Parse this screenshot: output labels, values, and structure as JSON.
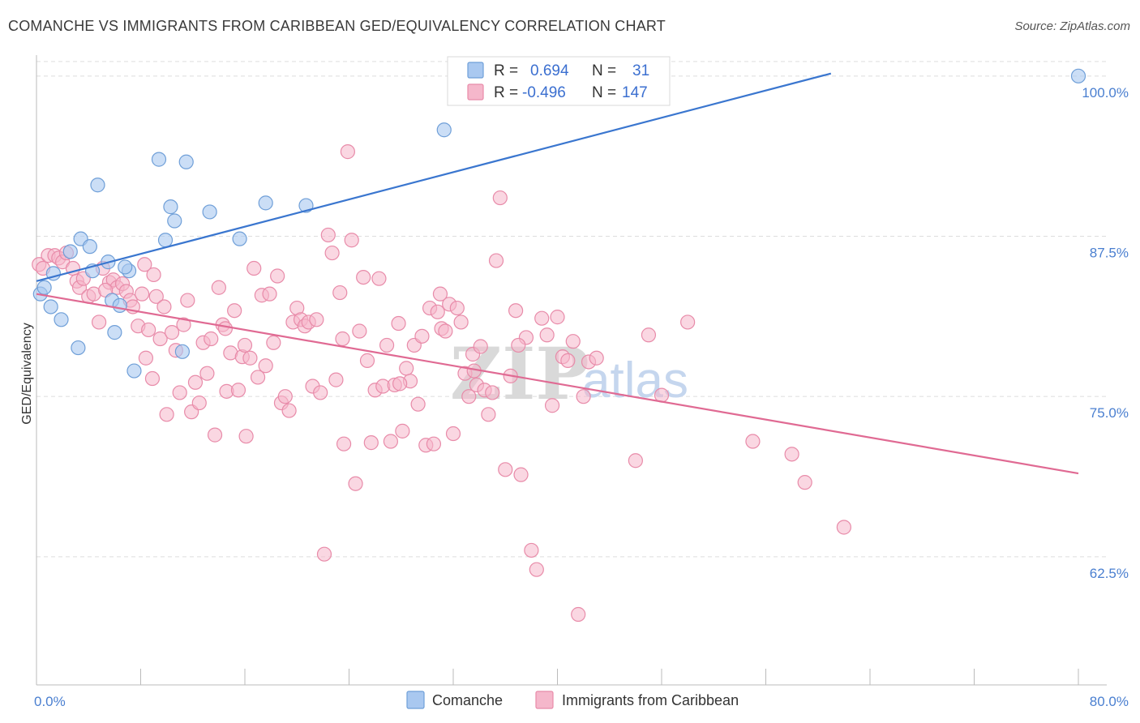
{
  "title": "COMANCHE VS IMMIGRANTS FROM CARIBBEAN GED/EQUIVALENCY CORRELATION CHART",
  "source": "Source: ZipAtlas.com",
  "watermark": {
    "zip": "ZIP",
    "atlas": "atlas"
  },
  "colors": {
    "blue_fill": "#a9c8f0",
    "blue_stroke": "#6f9fd8",
    "blue_line": "#3a76cf",
    "pink_fill": "#f5b7cb",
    "pink_stroke": "#e88ba9",
    "pink_line": "#e06a93",
    "grid": "#dddddd",
    "tick_text": "#4a7fd0"
  },
  "legend": {
    "rows": [
      {
        "r_label": "R =",
        "r_value": "0.694",
        "n_label": "N =",
        "n_value": "31"
      },
      {
        "r_label": "R =",
        "r_value": "-0.496",
        "n_label": "N =",
        "n_value": "147"
      }
    ]
  },
  "chart_data": {
    "type": "scatter",
    "title": "COMANCHE VS IMMIGRANTS FROM CARIBBEAN GED/EQUIVALENCY CORRELATION CHART",
    "xlabel": "",
    "ylabel": "GED/Equivalency",
    "xlim": [
      0,
      80
    ],
    "ylim": [
      52.5,
      101
    ],
    "x_tick_labels": [
      "0.0%",
      "80.0%"
    ],
    "y_ticks": [
      62.5,
      75.0,
      87.5,
      100.0
    ],
    "y_tick_labels": [
      "62.5%",
      "75.0%",
      "87.5%",
      "100.0%"
    ],
    "grid": true,
    "legend_position": "bottom",
    "series": [
      {
        "name": "Comanche",
        "color": "#a9c8f0",
        "trend": {
          "x": [
            0,
            61
          ],
          "y": [
            84.0,
            100.2
          ]
        },
        "points": [
          [
            0.3,
            83.0
          ],
          [
            0.6,
            83.5
          ],
          [
            1.1,
            82.0
          ],
          [
            1.9,
            81.0
          ],
          [
            2.6,
            86.3
          ],
          [
            3.2,
            78.8
          ],
          [
            3.4,
            87.3
          ],
          [
            4.1,
            86.7
          ],
          [
            4.7,
            91.5
          ],
          [
            5.5,
            85.5
          ],
          [
            5.8,
            82.5
          ],
          [
            6.0,
            80.0
          ],
          [
            6.4,
            82.1
          ],
          [
            7.1,
            84.8
          ],
          [
            7.5,
            77.0
          ],
          [
            9.4,
            93.5
          ],
          [
            9.9,
            87.2
          ],
          [
            10.3,
            89.8
          ],
          [
            10.6,
            88.7
          ],
          [
            11.2,
            78.5
          ],
          [
            11.5,
            93.3
          ],
          [
            13.3,
            89.4
          ],
          [
            15.6,
            87.3
          ],
          [
            17.6,
            90.1
          ],
          [
            20.7,
            89.9
          ],
          [
            31.3,
            95.8
          ],
          [
            33.0,
            100.0
          ],
          [
            80.0,
            100.0
          ],
          [
            4.3,
            84.8
          ],
          [
            1.3,
            84.6
          ],
          [
            6.8,
            85.1
          ]
        ]
      },
      {
        "name": "Immigrants from Caribbean",
        "color": "#f5b7cb",
        "trend": {
          "x": [
            0,
            80
          ],
          "y": [
            83.0,
            69.0
          ]
        },
        "points": [
          [
            0.2,
            85.3
          ],
          [
            0.5,
            85.0
          ],
          [
            0.9,
            86.0
          ],
          [
            1.4,
            86.0
          ],
          [
            1.7,
            85.8
          ],
          [
            2.0,
            85.5
          ],
          [
            2.3,
            86.2
          ],
          [
            2.8,
            85.0
          ],
          [
            3.1,
            84.0
          ],
          [
            3.3,
            83.5
          ],
          [
            3.6,
            84.2
          ],
          [
            4.0,
            82.8
          ],
          [
            4.4,
            83.0
          ],
          [
            4.8,
            80.8
          ],
          [
            5.1,
            85.0
          ],
          [
            5.6,
            83.9
          ],
          [
            5.9,
            84.1
          ],
          [
            6.2,
            83.5
          ],
          [
            6.6,
            83.8
          ],
          [
            6.9,
            83.2
          ],
          [
            7.2,
            82.5
          ],
          [
            7.4,
            82.0
          ],
          [
            7.8,
            80.5
          ],
          [
            8.1,
            83.0
          ],
          [
            8.3,
            85.3
          ],
          [
            8.6,
            80.2
          ],
          [
            8.9,
            76.4
          ],
          [
            9.2,
            82.8
          ],
          [
            9.5,
            79.5
          ],
          [
            9.8,
            82.0
          ],
          [
            10.0,
            73.6
          ],
          [
            10.4,
            80.0
          ],
          [
            10.7,
            78.6
          ],
          [
            11.0,
            75.3
          ],
          [
            11.3,
            80.6
          ],
          [
            11.6,
            82.5
          ],
          [
            11.9,
            73.8
          ],
          [
            12.2,
            76.1
          ],
          [
            12.5,
            74.5
          ],
          [
            12.8,
            79.2
          ],
          [
            13.1,
            76.8
          ],
          [
            13.4,
            79.5
          ],
          [
            13.7,
            72.0
          ],
          [
            14.0,
            83.5
          ],
          [
            14.3,
            80.6
          ],
          [
            14.6,
            75.4
          ],
          [
            14.9,
            78.4
          ],
          [
            15.2,
            81.7
          ],
          [
            15.5,
            75.5
          ],
          [
            15.8,
            78.1
          ],
          [
            16.1,
            71.9
          ],
          [
            16.4,
            78.0
          ],
          [
            16.7,
            85.0
          ],
          [
            17.0,
            76.5
          ],
          [
            17.3,
            82.9
          ],
          [
            17.6,
            77.4
          ],
          [
            17.9,
            83.0
          ],
          [
            18.2,
            79.2
          ],
          [
            18.5,
            84.4
          ],
          [
            18.8,
            74.5
          ],
          [
            19.1,
            75.0
          ],
          [
            19.4,
            73.9
          ],
          [
            19.7,
            80.8
          ],
          [
            20.0,
            81.9
          ],
          [
            20.3,
            81.0
          ],
          [
            20.6,
            80.5
          ],
          [
            20.9,
            80.8
          ],
          [
            21.2,
            75.8
          ],
          [
            21.5,
            81.0
          ],
          [
            21.8,
            75.3
          ],
          [
            22.1,
            62.7
          ],
          [
            22.4,
            87.6
          ],
          [
            22.7,
            86.2
          ],
          [
            23.0,
            76.3
          ],
          [
            23.3,
            83.1
          ],
          [
            23.6,
            71.3
          ],
          [
            23.9,
            94.1
          ],
          [
            24.2,
            87.2
          ],
          [
            24.5,
            68.2
          ],
          [
            24.8,
            80.1
          ],
          [
            25.1,
            84.3
          ],
          [
            25.4,
            77.8
          ],
          [
            25.7,
            71.4
          ],
          [
            26.0,
            75.5
          ],
          [
            26.3,
            84.2
          ],
          [
            26.6,
            75.8
          ],
          [
            26.9,
            79.0
          ],
          [
            27.2,
            71.5
          ],
          [
            27.5,
            75.9
          ],
          [
            27.8,
            80.7
          ],
          [
            28.1,
            72.3
          ],
          [
            28.4,
            77.2
          ],
          [
            28.7,
            76.2
          ],
          [
            29.0,
            79.0
          ],
          [
            29.3,
            74.4
          ],
          [
            29.6,
            79.7
          ],
          [
            29.9,
            71.2
          ],
          [
            30.2,
            81.9
          ],
          [
            30.5,
            71.3
          ],
          [
            30.8,
            81.6
          ],
          [
            31.1,
            80.3
          ],
          [
            31.4,
            80.1
          ],
          [
            31.7,
            82.2
          ],
          [
            32.0,
            72.1
          ],
          [
            32.3,
            81.9
          ],
          [
            32.6,
            80.8
          ],
          [
            32.9,
            76.8
          ],
          [
            33.2,
            75.0
          ],
          [
            33.5,
            78.3
          ],
          [
            33.8,
            75.9
          ],
          [
            34.1,
            78.9
          ],
          [
            34.4,
            75.5
          ],
          [
            34.7,
            73.6
          ],
          [
            35.0,
            75.3
          ],
          [
            35.3,
            85.6
          ],
          [
            35.6,
            90.5
          ],
          [
            36.0,
            69.3
          ],
          [
            36.4,
            76.6
          ],
          [
            36.8,
            81.7
          ],
          [
            37.2,
            68.9
          ],
          [
            37.6,
            79.6
          ],
          [
            38.0,
            63.0
          ],
          [
            38.4,
            61.5
          ],
          [
            38.8,
            81.1
          ],
          [
            39.2,
            79.8
          ],
          [
            39.6,
            74.3
          ],
          [
            40.0,
            81.2
          ],
          [
            40.4,
            78.1
          ],
          [
            40.8,
            77.8
          ],
          [
            41.2,
            79.3
          ],
          [
            41.6,
            58.0
          ],
          [
            42.0,
            75.0
          ],
          [
            42.4,
            77.7
          ],
          [
            46.0,
            70.0
          ],
          [
            47.0,
            79.8
          ],
          [
            48.0,
            75.1
          ],
          [
            50.0,
            80.8
          ],
          [
            55.0,
            71.5
          ],
          [
            58.0,
            70.5
          ],
          [
            59.0,
            68.3
          ],
          [
            62.0,
            64.8
          ],
          [
            16.0,
            79.0
          ],
          [
            27.9,
            76.0
          ],
          [
            31.0,
            83.0
          ],
          [
            9.0,
            84.5
          ],
          [
            5.3,
            83.3
          ],
          [
            14.5,
            80.3
          ],
          [
            23.5,
            79.5
          ],
          [
            33.6,
            77.0
          ],
          [
            37.0,
            79.0
          ],
          [
            43.0,
            78.0
          ],
          [
            8.4,
            78.0
          ]
        ]
      }
    ]
  }
}
